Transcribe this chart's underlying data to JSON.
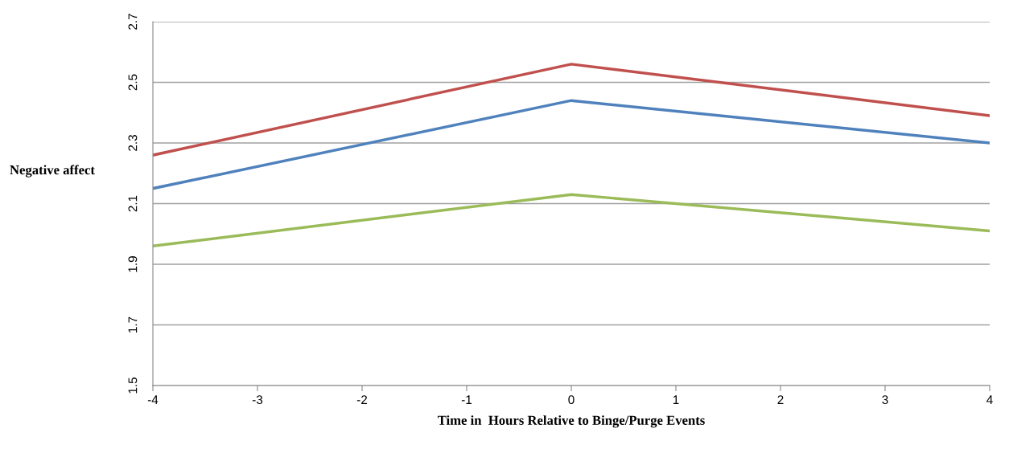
{
  "chart_data": {
    "type": "line",
    "xlabel": "Time in  Hours Relative to Binge/Purge Events",
    "ylabel": "Negative affect",
    "x": [
      -4,
      0,
      4
    ],
    "series": [
      {
        "color": "#c0504d",
        "values": [
          2.26,
          2.56,
          2.39
        ]
      },
      {
        "color": "#4f81bd",
        "values": [
          2.15,
          2.44,
          2.3
        ]
      },
      {
        "color": "#9bbb59",
        "values": [
          1.96,
          2.13,
          2.01
        ]
      }
    ],
    "xlim": [
      -4,
      4
    ],
    "xticks": [
      -4,
      -3,
      -2,
      -1,
      0,
      1,
      2,
      3,
      4
    ],
    "ylim": [
      1.5,
      2.7
    ],
    "yticks": [
      1.5,
      1.7,
      1.9,
      2.1,
      2.3,
      2.5,
      2.7
    ],
    "grid": "y",
    "marker": "none",
    "line_style": "solid",
    "legend": false
  }
}
